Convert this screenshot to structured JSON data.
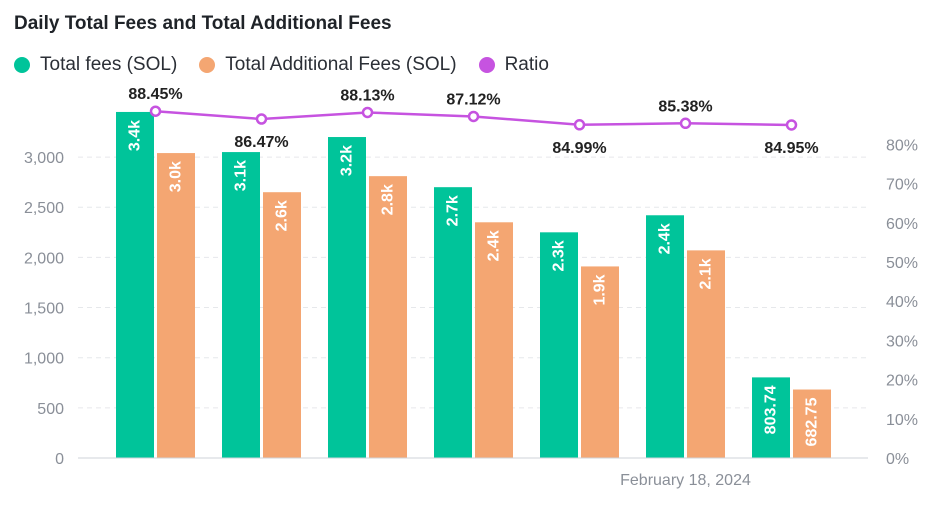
{
  "chart_data": {
    "type": "bar",
    "title": "Daily Total Fees and Total Additional Fees",
    "xlabel": "",
    "ylabel": "",
    "x_tick_labels": [
      "",
      "",
      "",
      "",
      "",
      "February 18, 2024",
      ""
    ],
    "y_left": {
      "min": 0,
      "max": 3300,
      "ticks": [
        0,
        500,
        1000,
        1500,
        2000,
        2500,
        3000
      ],
      "tick_labels": [
        "0",
        "500",
        "1,000",
        "1,500",
        "2,000",
        "2,500",
        "3,000"
      ]
    },
    "y_right": {
      "min": 0,
      "max": 0.88,
      "ticks": [
        0,
        0.1,
        0.2,
        0.3,
        0.4,
        0.5,
        0.6,
        0.7,
        0.8
      ],
      "tick_labels": [
        "0%",
        "10%",
        "20%",
        "30%",
        "40%",
        "50%",
        "60%",
        "70%",
        "80%"
      ]
    },
    "grid": "horizontal dashed",
    "legend_position": "top-left",
    "series": [
      {
        "name": "Total fees (SOL)",
        "type": "bar",
        "color": "#00c49a",
        "values": [
          3450,
          3050,
          3200,
          2700,
          2250,
          2420,
          803.74
        ],
        "labels": [
          "3.4k",
          "3.1k",
          "3.2k",
          "2.7k",
          "2.3k",
          "2.4k",
          "803.74"
        ]
      },
      {
        "name": "Total Additional Fees (SOL)",
        "type": "bar",
        "color": "#f4a672",
        "values": [
          3040,
          2650,
          2810,
          2350,
          1910,
          2070,
          682.75
        ],
        "labels": [
          "3.0k",
          "2.6k",
          "2.8k",
          "2.4k",
          "1.9k",
          "2.1k",
          "682.75"
        ]
      },
      {
        "name": "Ratio",
        "type": "line",
        "color": "#c653e0",
        "axis": "right",
        "values": [
          0.8845,
          0.8647,
          0.8813,
          0.8712,
          0.8499,
          0.8538,
          0.8495
        ],
        "labels": [
          "88.45%",
          "86.47%",
          "88.13%",
          "87.12%",
          "84.99%",
          "85.38%",
          "84.95%"
        ]
      }
    ]
  }
}
